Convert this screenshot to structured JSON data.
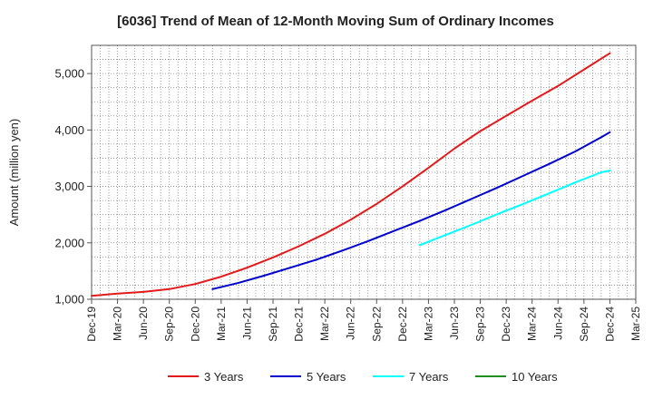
{
  "chart_data": {
    "type": "line",
    "title": "[6036]  Trend of Mean of 12-Month Moving Sum of Ordinary Incomes",
    "xlabel": "",
    "ylabel": "Amount (million yen)",
    "ylim": [
      1000,
      5500
    ],
    "yticks": [
      1000,
      2000,
      3000,
      4000,
      5000
    ],
    "ytick_labels": [
      "1,000",
      "2,000",
      "3,000",
      "4,000",
      "5,000"
    ],
    "x_tick_labels": [
      "Dec-19",
      "Mar-20",
      "Jun-20",
      "Sep-20",
      "Dec-20",
      "Mar-21",
      "Jun-21",
      "Sep-21",
      "Dec-21",
      "Mar-22",
      "Jun-22",
      "Sep-22",
      "Dec-22",
      "Mar-23",
      "Jun-23",
      "Sep-23",
      "Dec-23",
      "Mar-24",
      "Jun-24",
      "Sep-24",
      "Dec-24",
      "Mar-25"
    ],
    "x_range_months": [
      0,
      63
    ],
    "grid": true,
    "legend_position": "bottom",
    "series": [
      {
        "name": "3 Years",
        "color": "#e31a1c",
        "x_months": [
          0,
          3,
          6,
          9,
          12,
          15,
          18,
          21,
          24,
          27,
          30,
          33,
          36,
          39,
          42,
          45,
          48,
          51,
          54,
          57,
          60
        ],
        "values": [
          1060,
          1100,
          1130,
          1180,
          1270,
          1400,
          1560,
          1740,
          1940,
          2160,
          2410,
          2690,
          3000,
          3330,
          3670,
          3980,
          4250,
          4520,
          4780,
          5070,
          5360
        ]
      },
      {
        "name": "5 Years",
        "color": "#0000cc",
        "x_months": [
          14,
          17,
          20,
          23,
          26,
          29,
          32,
          35,
          38,
          41,
          44,
          47,
          50,
          53,
          56,
          59,
          60
        ],
        "values": [
          1180,
          1290,
          1420,
          1560,
          1700,
          1860,
          2030,
          2210,
          2390,
          2580,
          2780,
          2980,
          3190,
          3400,
          3620,
          3870,
          3960
        ]
      },
      {
        "name": "7 Years",
        "color": "#00ffff",
        "x_months": [
          38,
          41,
          44,
          47,
          50,
          53,
          56,
          59,
          60
        ],
        "values": [
          1960,
          2140,
          2320,
          2510,
          2690,
          2880,
          3070,
          3250,
          3280
        ]
      },
      {
        "name": "10 Years",
        "color": "#228b22",
        "x_months": [],
        "values": []
      }
    ]
  }
}
